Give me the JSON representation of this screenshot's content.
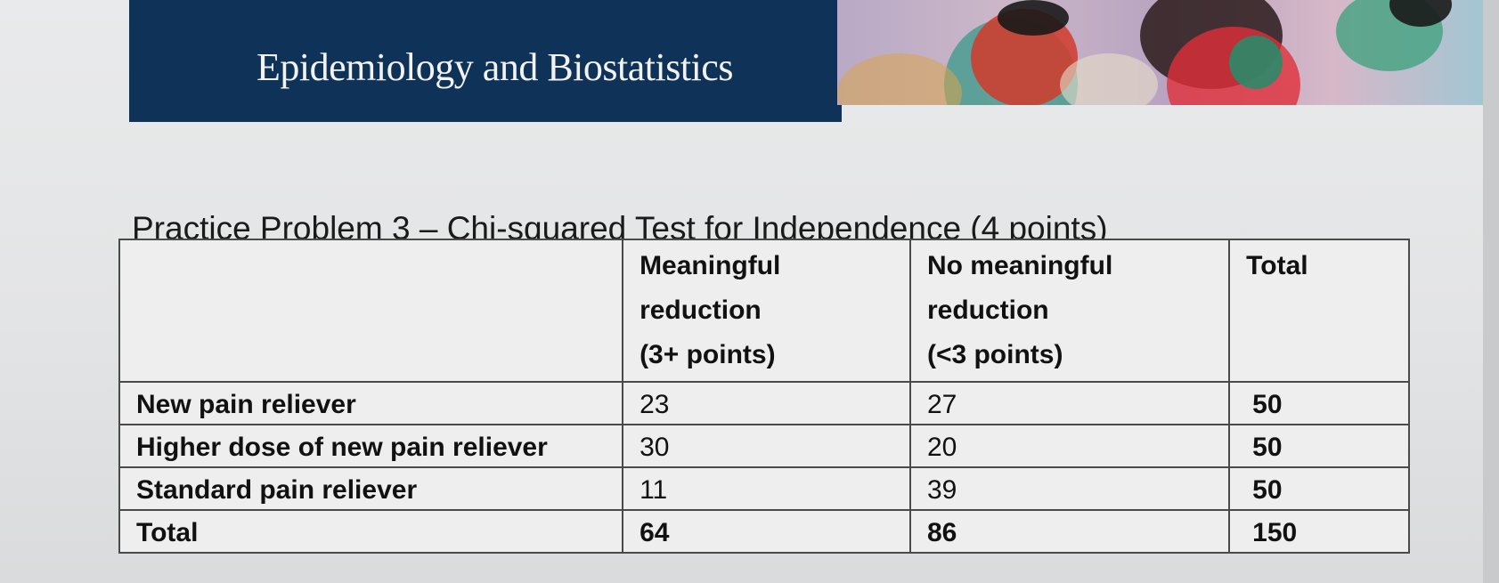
{
  "header": {
    "course_title": "Epidemiology and Biostatistics"
  },
  "problem": {
    "title": "Practice Problem 3 – Chi-squared Test for Independence (4 points)"
  },
  "table": {
    "headers": {
      "row_label": "",
      "meaningful_line1": "Meaningful",
      "meaningful_line2": "reduction",
      "meaningful_line3": "(3+ points)",
      "no_meaningful_line1": "No meaningful",
      "no_meaningful_line2": "reduction",
      "no_meaningful_line3": "(<3 points)",
      "total": "Total"
    },
    "rows": [
      {
        "label": "New pain reliever",
        "meaningful": "23",
        "no_meaningful": "27",
        "total": "50"
      },
      {
        "label": "Higher dose of new pain reliever",
        "meaningful": "30",
        "no_meaningful": "20",
        "total": "50"
      },
      {
        "label": "Standard pain reliever",
        "meaningful": "11",
        "no_meaningful": "39",
        "total": "50"
      },
      {
        "label": "Total",
        "meaningful": "64",
        "no_meaningful": "86",
        "total": "150"
      }
    ]
  },
  "colors": {
    "header_band": "#0f3258",
    "header_text": "#f2f2f2"
  }
}
